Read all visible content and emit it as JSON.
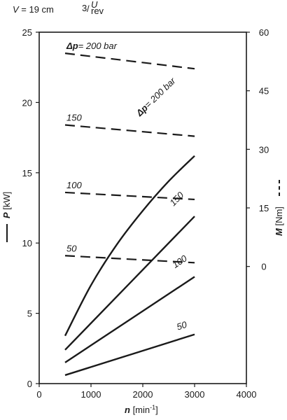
{
  "chart_data": {
    "type": "line",
    "header": {
      "v_symbol": "V",
      "v_text": " = 19 cm",
      "unit_num": "3",
      "unit_slash": "/",
      "unit_top": "U",
      "unit_bottom": "rev"
    },
    "xlabel": {
      "symbol": "n",
      "unit": " [min",
      "exp": "-1",
      "close": "]"
    },
    "ylabel_left": {
      "symbol": "P",
      "unit": " [kW]"
    },
    "ylabel_right": {
      "symbol": "M",
      "unit": " [Nm]"
    },
    "xlim": [
      0,
      4000
    ],
    "ylim_left": [
      0,
      25
    ],
    "ylim_right": [
      -30,
      60
    ],
    "x_ticks": [
      0,
      1000,
      2000,
      3000,
      4000
    ],
    "y_ticks_left": [
      0,
      5,
      10,
      15,
      20,
      25
    ],
    "y_ticks_right": [
      0,
      15,
      30,
      45,
      60
    ],
    "power_series": [
      {
        "label": "50",
        "x": [
          500,
          3000
        ],
        "y": [
          0.6,
          3.5
        ]
      },
      {
        "label": "100",
        "x": [
          500,
          3000
        ],
        "y": [
          1.5,
          7.6
        ]
      },
      {
        "label": "150",
        "x": [
          500,
          3000
        ],
        "y": [
          2.4,
          11.9
        ]
      },
      {
        "label": "= 200 bar",
        "x": [
          500,
          1000,
          1500,
          2000,
          2500,
          3000
        ],
        "y": [
          3.4,
          7.0,
          9.9,
          12.3,
          14.4,
          16.2
        ]
      }
    ],
    "torque_series": [
      {
        "label": "50",
        "x": [
          500,
          3000
        ],
        "y": [
          9.1,
          8.6
        ]
      },
      {
        "label": "100",
        "x": [
          500,
          3000
        ],
        "y": [
          13.6,
          13.1
        ]
      },
      {
        "label": "150",
        "x": [
          500,
          3000
        ],
        "y": [
          18.4,
          17.6
        ]
      },
      {
        "label": "= 200 bar",
        "x": [
          500,
          3000
        ],
        "y": [
          23.5,
          22.4
        ]
      }
    ],
    "annotation_prefix_torque": "Δp",
    "annotation_prefix_power": "Δp"
  }
}
